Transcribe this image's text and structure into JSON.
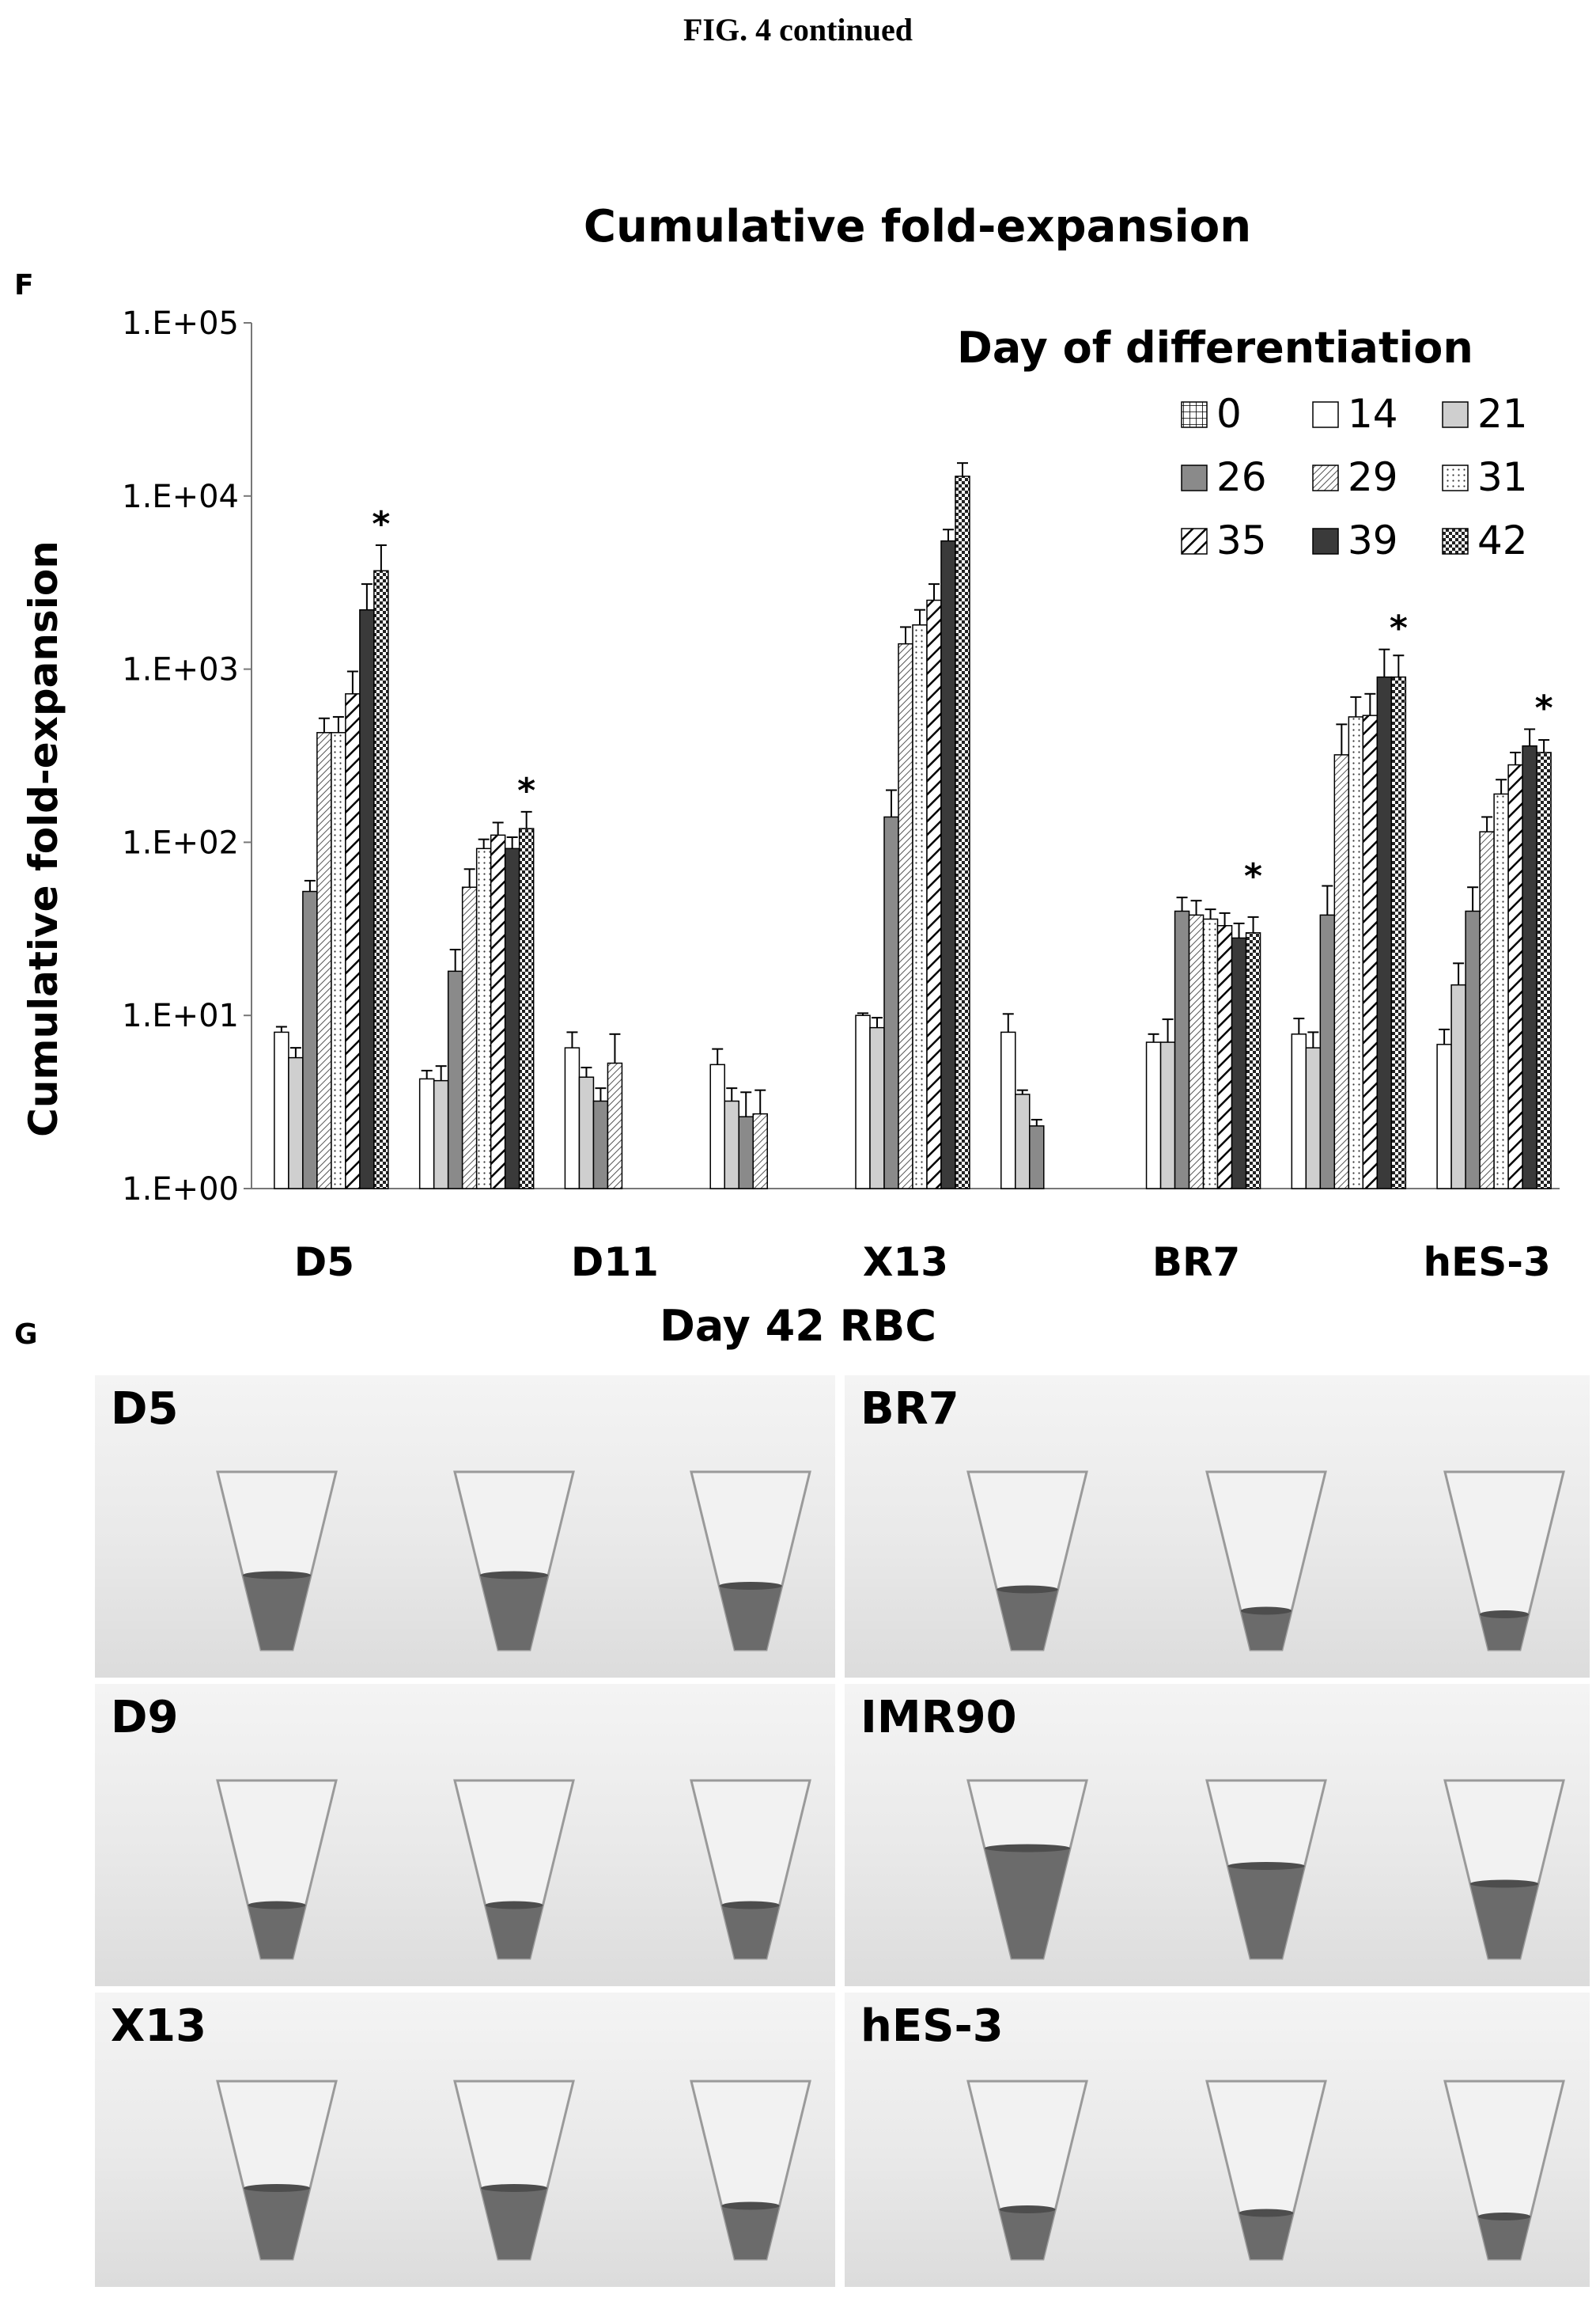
{
  "figure_heading": "FIG. 4 continued",
  "panel_f_label": "F",
  "panel_g_label": "G",
  "chart_data": {
    "type": "bar",
    "title": "Cumulative fold-expansion",
    "xlabel": "",
    "ylabel": "Cumulative fold-expansion",
    "yscale": "log",
    "ylim": [
      1,
      100000
    ],
    "ytick_labels": [
      "1.E+00",
      "1.E+01",
      "1.E+02",
      "1.E+03",
      "1.E+04",
      "1.E+05"
    ],
    "ytick_values": [
      1,
      10,
      100,
      1000,
      10000,
      100000
    ],
    "group_labels": [
      "D5",
      "D11",
      "X13",
      "BR7",
      "hES-3"
    ],
    "legend_title": "Day of differentiation",
    "legend_position": "top-right",
    "series_names": [
      "0",
      "14",
      "21",
      "26",
      "29",
      "31",
      "35",
      "39",
      "42"
    ],
    "series_patterns": [
      "grid",
      "white",
      "lightgray",
      "gray",
      "diag-fine",
      "dots",
      "diag-bold",
      "dark",
      "checker"
    ],
    "groups": [
      {
        "position": 0,
        "label": "D5",
        "values": [
          null,
          8,
          5.7,
          52,
          430,
          430,
          720,
          2200,
          3700
        ],
        "errors": [
          null,
          0.6,
          0.8,
          8,
          90,
          100,
          250,
          900,
          1500
        ],
        "star": true
      },
      {
        "position": 1,
        "label": "",
        "values": [
          null,
          4.3,
          4.2,
          18,
          55,
          92,
          110,
          92,
          120
        ],
        "errors": [
          null,
          0.5,
          0.9,
          6,
          15,
          12,
          20,
          15,
          30
        ],
        "star": true
      },
      {
        "position": 2,
        "label": "D11",
        "values": [
          null,
          6.5,
          4.4,
          3.2,
          5.3,
          null,
          null,
          null,
          null
        ],
        "errors": [
          null,
          1.5,
          0.6,
          0.6,
          2.5,
          null,
          null,
          null,
          null
        ],
        "star": false
      },
      {
        "position": 3,
        "label": "",
        "values": [
          null,
          5.2,
          3.2,
          2.6,
          2.7,
          null,
          null,
          null,
          null
        ],
        "errors": [
          null,
          1.2,
          0.6,
          1.0,
          1.0,
          null,
          null,
          null,
          null
        ],
        "star": false
      },
      {
        "position": 4,
        "label": "X13",
        "values": [
          null,
          10,
          8.5,
          140,
          1400,
          1800,
          2500,
          5500,
          13000
        ],
        "errors": [
          null,
          0.3,
          1.2,
          60,
          350,
          400,
          600,
          900,
          2500
        ],
        "star": false
      },
      {
        "position": 5,
        "label": "",
        "values": [
          null,
          8,
          3.5,
          2.3,
          null,
          null,
          null,
          null,
          null
        ],
        "errors": [
          null,
          2.2,
          0.2,
          0.2,
          null,
          null,
          null,
          null,
          null
        ],
        "star": false
      },
      {
        "position": 6,
        "label": "BR7",
        "values": [
          null,
          7,
          7,
          40,
          38,
          36,
          33,
          28,
          30
        ],
        "errors": [
          null,
          0.8,
          2.5,
          8,
          8,
          5,
          6,
          6,
          7
        ],
        "star": true
      },
      {
        "position": 7,
        "label": "",
        "values": [
          null,
          7.8,
          6.5,
          38,
          320,
          530,
          540,
          900,
          900
        ],
        "errors": [
          null,
          1.8,
          1.5,
          18,
          160,
          160,
          180,
          400,
          300
        ],
        "star": true
      },
      {
        "position": 8,
        "label": "hES-3",
        "values": [
          null,
          6.8,
          15,
          40,
          115,
          190,
          280,
          360,
          330
        ],
        "errors": [
          null,
          1.5,
          5,
          15,
          25,
          40,
          50,
          90,
          60
        ],
        "star": true
      }
    ]
  },
  "photo_panel": {
    "title": "Day 42 RBC",
    "cell_labels": [
      "D5",
      "BR7",
      "D9",
      "IMR90",
      "X13",
      "hES-3"
    ]
  },
  "colors": {
    "bar_outline": "#000000",
    "light_gray": "#cfcfcf",
    "mid_gray": "#8a8a8a",
    "dark_gray": "#3a3a3a",
    "tube_liquid": "#6b6b6b"
  }
}
